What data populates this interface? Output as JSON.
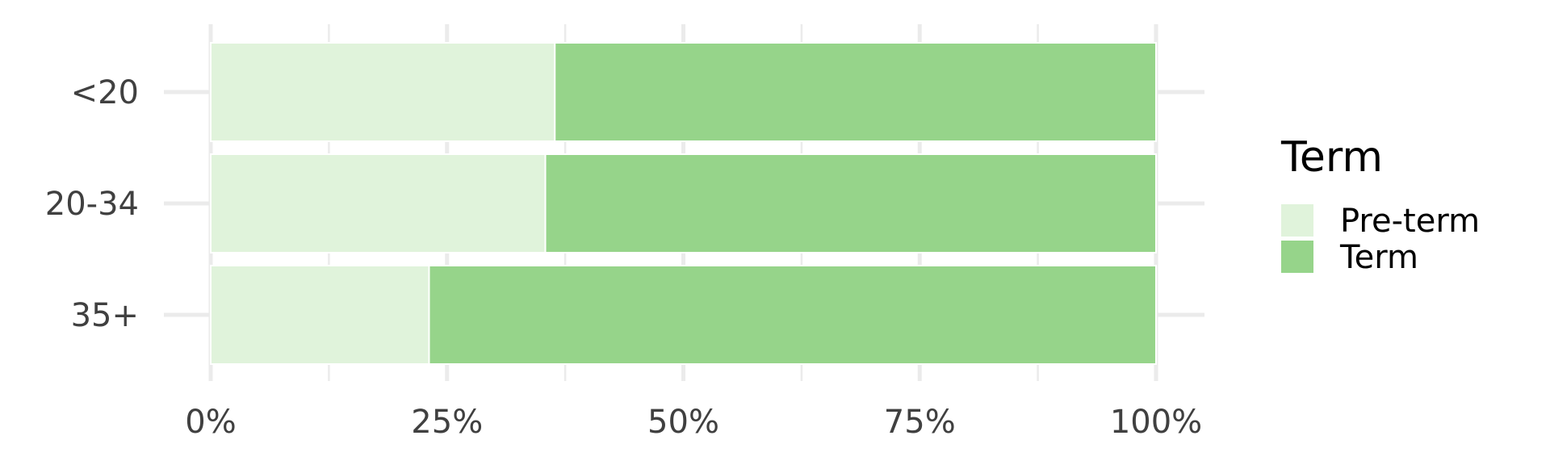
{
  "chart_data": {
    "type": "bar",
    "orientation": "horizontal",
    "stacked": "percent",
    "categories": [
      "<20",
      "20-34",
      "35+"
    ],
    "series": [
      {
        "name": "Pre-term",
        "values": [
          36.4,
          35.4,
          23.1
        ],
        "color": "#E0F3DB"
      },
      {
        "name": "Term",
        "values": [
          63.6,
          64.6,
          76.9
        ],
        "color": "#96D48A"
      }
    ],
    "xticks": [
      "0%",
      "25%",
      "50%",
      "75%",
      "100%"
    ],
    "xlim": [
      0,
      100
    ],
    "legend": {
      "title": "Term",
      "position": "right"
    },
    "grid": true,
    "grid_color": "#EBEBEB"
  }
}
